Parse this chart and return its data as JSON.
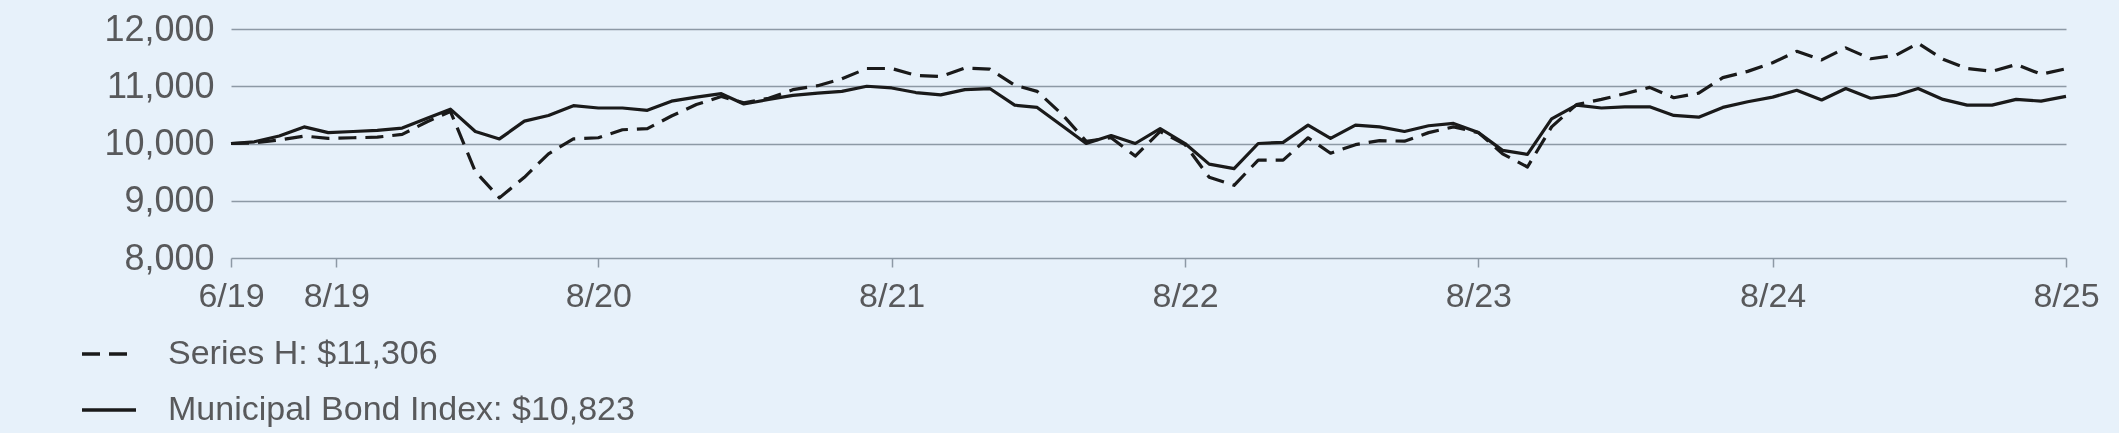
{
  "chart_data": {
    "type": "line",
    "x": [
      "2019-06-01",
      "2019-06-30",
      "2019-07-31",
      "2019-08-31",
      "2019-09-30",
      "2019-10-31",
      "2019-11-30",
      "2019-12-31",
      "2020-01-31",
      "2020-02-29",
      "2020-03-31",
      "2020-04-30",
      "2020-05-31",
      "2020-06-30",
      "2020-07-31",
      "2020-08-31",
      "2020-09-30",
      "2020-10-31",
      "2020-11-30",
      "2020-12-31",
      "2021-01-31",
      "2021-02-28",
      "2021-03-31",
      "2021-04-30",
      "2021-05-31",
      "2021-06-30",
      "2021-07-31",
      "2021-08-31",
      "2021-09-30",
      "2021-10-31",
      "2021-11-30",
      "2021-12-31",
      "2022-01-31",
      "2022-02-28",
      "2022-03-31",
      "2022-04-30",
      "2022-05-31",
      "2022-06-30",
      "2022-07-31",
      "2022-08-31",
      "2022-09-30",
      "2022-10-31",
      "2022-11-30",
      "2022-12-31",
      "2023-01-31",
      "2023-02-28",
      "2023-03-31",
      "2023-04-30",
      "2023-05-31",
      "2023-06-30",
      "2023-07-31",
      "2023-08-31",
      "2023-09-30",
      "2023-10-31",
      "2023-11-30",
      "2023-12-31",
      "2024-01-31",
      "2024-02-29",
      "2024-03-31",
      "2024-04-30",
      "2024-05-31",
      "2024-06-30",
      "2024-07-31",
      "2024-08-31",
      "2024-09-30",
      "2024-10-31",
      "2024-11-30",
      "2024-12-31",
      "2025-01-31",
      "2025-02-28",
      "2025-03-31",
      "2025-04-30",
      "2025-05-31",
      "2025-06-30",
      "2025-07-31",
      "2025-08-31"
    ],
    "series": [
      {
        "name": "Series H: $11,306",
        "color": "#1a1a1a",
        "line_style": "dashed",
        "values": [
          10000,
          10010,
          10060,
          10130,
          10090,
          10100,
          10110,
          10160,
          10380,
          10560,
          9510,
          9050,
          9410,
          9820,
          10080,
          10100,
          10240,
          10260,
          10480,
          10680,
          10820,
          10710,
          10790,
          10940,
          11010,
          11130,
          11310,
          11310,
          11190,
          11170,
          11320,
          11300,
          11020,
          10910,
          10510,
          10040,
          10100,
          9780,
          10210,
          9980,
          9410,
          9270,
          9710,
          9710,
          10100,
          9830,
          9980,
          10050,
          10040,
          10190,
          10290,
          10190,
          9820,
          9590,
          10290,
          10680,
          10770,
          10870,
          10980,
          10800,
          10880,
          11150,
          11260,
          11410,
          11610,
          11460,
          11670,
          11480,
          11540,
          11750,
          11470,
          11310,
          11260,
          11380,
          11210,
          11306
        ]
      },
      {
        "name": "Municipal Bond Index: $10,823",
        "color": "#1a1a1a",
        "line_style": "solid",
        "values": [
          10000,
          10030,
          10130,
          10290,
          10190,
          10210,
          10230,
          10270,
          10440,
          10600,
          10210,
          10080,
          10390,
          10490,
          10660,
          10620,
          10620,
          10580,
          10740,
          10810,
          10870,
          10690,
          10770,
          10840,
          10880,
          10910,
          11000,
          10970,
          10890,
          10850,
          10940,
          10960,
          10670,
          10630,
          10310,
          10000,
          10140,
          10000,
          10260,
          10000,
          9640,
          9560,
          10000,
          10020,
          10320,
          10090,
          10320,
          10290,
          10210,
          10310,
          10350,
          10190,
          9880,
          9810,
          10430,
          10670,
          10620,
          10640,
          10640,
          10490,
          10460,
          10630,
          10730,
          10810,
          10930,
          10760,
          10960,
          10790,
          10840,
          10960,
          10770,
          10670,
          10670,
          10770,
          10740,
          10823
        ]
      }
    ],
    "xlim": [
      "2019-06-01",
      "2025-08-31"
    ],
    "xticks": [
      {
        "value": "2019-06-01",
        "label": "6/19"
      },
      {
        "value": "2019-10-10",
        "label": "8/19"
      },
      {
        "value": "2020-08-31",
        "label": "8/20"
      },
      {
        "value": "2021-08-31",
        "label": "8/21"
      },
      {
        "value": "2022-08-31",
        "label": "8/22"
      },
      {
        "value": "2023-08-31",
        "label": "8/23"
      },
      {
        "value": "2024-08-31",
        "label": "8/24"
      },
      {
        "value": "2025-08-31",
        "label": "8/25"
      }
    ],
    "ylim": [
      8000,
      12000
    ],
    "yticks": [
      {
        "value": 8000,
        "label": "8,000"
      },
      {
        "value": 9000,
        "label": "9,000"
      },
      {
        "value": 10000,
        "label": "10,000"
      },
      {
        "value": 11000,
        "label": "11,000"
      },
      {
        "value": 12000,
        "label": "12,000"
      }
    ],
    "grid": "y",
    "legend": "bottom left"
  }
}
